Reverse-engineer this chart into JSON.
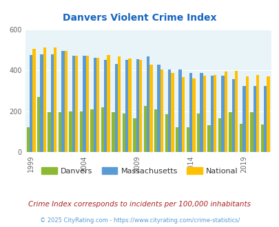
{
  "title": "Danvers Violent Crime Index",
  "years": [
    1999,
    2000,
    2001,
    2002,
    2003,
    2004,
    2005,
    2006,
    2007,
    2008,
    2009,
    2010,
    2011,
    2012,
    2013,
    2014,
    2015,
    2016,
    2017,
    2018,
    2019,
    2020,
    2021
  ],
  "danvers": [
    120,
    270,
    195,
    195,
    200,
    200,
    210,
    220,
    195,
    190,
    165,
    225,
    210,
    185,
    120,
    120,
    190,
    130,
    165,
    195,
    140,
    195,
    135
  ],
  "massachusetts": [
    475,
    480,
    478,
    495,
    472,
    472,
    462,
    452,
    432,
    453,
    455,
    468,
    428,
    403,
    403,
    388,
    388,
    373,
    373,
    357,
    322,
    322,
    322
  ],
  "national": [
    506,
    511,
    511,
    494,
    472,
    472,
    462,
    474,
    468,
    458,
    452,
    428,
    403,
    387,
    367,
    362,
    373,
    377,
    393,
    397,
    372,
    377,
    372
  ],
  "danvers_color": "#8db832",
  "mass_color": "#5b9bd5",
  "national_color": "#ffc000",
  "bg_color": "#e8f4f8",
  "title_color": "#1565c0",
  "ylabel_max": 600,
  "subtitle": "Crime Index corresponds to incidents per 100,000 inhabitants",
  "footer": "© 2025 CityRating.com - https://www.cityrating.com/crime-statistics/",
  "subtitle_color": "#aa2222",
  "footer_color": "#5b9bd5"
}
